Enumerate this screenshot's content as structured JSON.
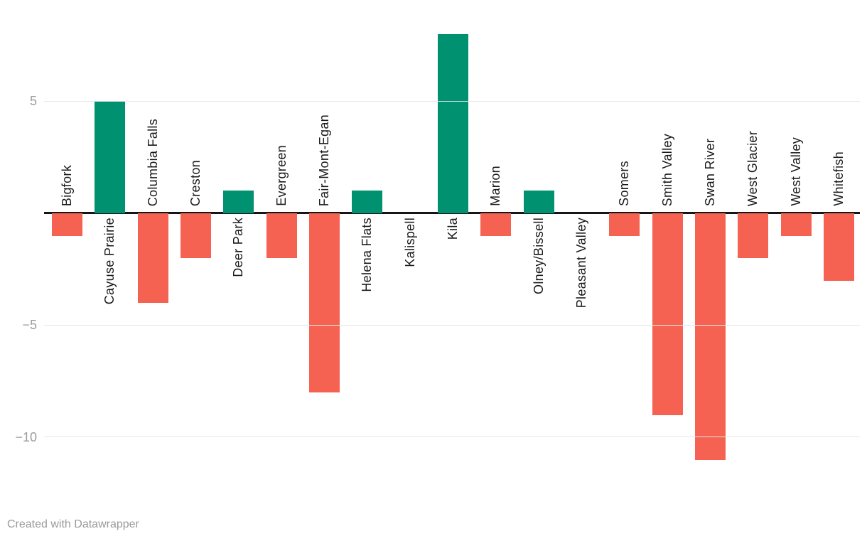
{
  "chart_data": {
    "type": "bar",
    "categories": [
      "Bigfork",
      "Cayuse Prairie",
      "Columbia Falls",
      "Creston",
      "Deer Park",
      "Evergreen",
      "Fair-Mont-Egan",
      "Helena Flats",
      "Kalispell",
      "Kila",
      "Marion",
      "Olney/Bissell",
      "Pleasant Valley",
      "Somers",
      "Smith Valley",
      "Swan River",
      "West Glacier",
      "West Valley",
      "Whitefish"
    ],
    "values": [
      -1,
      5,
      -4,
      -2,
      1,
      -2,
      -8,
      1,
      0,
      8,
      -1,
      1,
      0,
      -1,
      -9,
      -11,
      -2,
      -1,
      -3
    ],
    "title": "",
    "xlabel": "",
    "ylabel": "",
    "yticks": [
      {
        "value": 5,
        "label": "5"
      },
      {
        "value": -5,
        "label": "−5"
      },
      {
        "value": -10,
        "label": "−10"
      }
    ],
    "ylim": [
      -12.5,
      9.5
    ],
    "grid": true,
    "legend_position": "none",
    "label_rotation": "vertical",
    "label_side_rule": "opposite-of-bar",
    "colors": {
      "positive": "#009270",
      "negative": "#f66252"
    }
  },
  "footer": {
    "credit": "Created with Datawrapper"
  }
}
